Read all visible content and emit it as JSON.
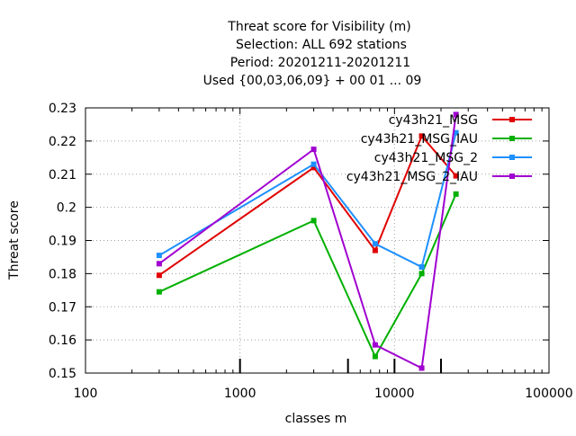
{
  "chart_data": {
    "type": "line",
    "title_lines": [
      "Threat score  for Visibility (m)",
      "Selection: ALL    692 stations",
      "Period: 20201211-20201211",
      "Used {00,03,06,09} + 00 01 ... 09"
    ],
    "xlabel": "classes m",
    "ylabel": "Threat score",
    "x_scale": "log",
    "xlim": [
      100,
      100000
    ],
    "ylim": [
      0.15,
      0.23
    ],
    "x_ticks": [
      100,
      1000,
      10000,
      100000
    ],
    "x_tick_labels": [
      "100",
      "1000",
      "10000",
      "100000"
    ],
    "y_ticks": [
      0.15,
      0.16,
      0.17,
      0.18,
      0.19,
      0.2,
      0.21,
      0.22,
      0.23
    ],
    "y_tick_labels": [
      "0.15",
      "0.16",
      "0.17",
      "0.18",
      "0.19",
      "0.2",
      "0.21",
      "0.22",
      "0.23"
    ],
    "grid": true,
    "legend_position": "top-right",
    "class_marks": [
      1000,
      5000,
      10000,
      20000
    ],
    "x": [
      300,
      3000,
      7500,
      15000,
      25000
    ],
    "series": [
      {
        "name": "cy43h21_MSG",
        "color": "#e00000",
        "values": [
          0.1795,
          0.212,
          0.187,
          0.2215,
          0.2095
        ]
      },
      {
        "name": "cy43h21_MSG_IAU",
        "color": "#00b000",
        "values": [
          0.1745,
          0.196,
          0.155,
          0.18,
          0.204
        ]
      },
      {
        "name": "cy43h21_MSG_2",
        "color": "#1e90ff",
        "values": [
          0.1855,
          0.213,
          0.189,
          0.182,
          0.2225
        ]
      },
      {
        "name": "cy43h21_MSG_2_IAU",
        "color": "#a000d0",
        "values": [
          0.183,
          0.2175,
          0.1585,
          0.1515,
          0.228
        ]
      }
    ]
  }
}
